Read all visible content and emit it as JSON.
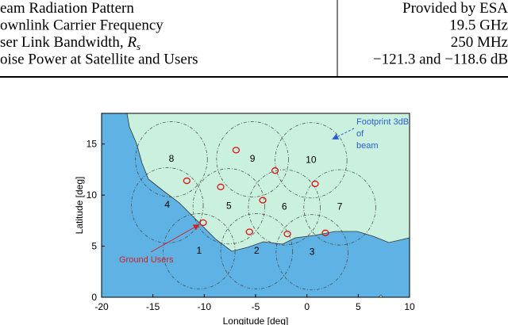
{
  "table": {
    "rows": [
      {
        "label": "eam Radiation Pattern",
        "value": "Provided by ESA"
      },
      {
        "label": "ownlink Carrier Frequency",
        "value": "19.5 GHz"
      },
      {
        "label": "ser Link Bandwidth, ",
        "symbol": "R",
        "subscript": "s",
        "value": "250 MHz"
      },
      {
        "label": "oise Power at Satellite and Users",
        "value": "−121.3 and −118.6 dB"
      }
    ]
  },
  "figure": {
    "xlabel": "Longitude [deg]",
    "ylabel": "Latitude [deg]",
    "xlim": [
      -20,
      10
    ],
    "ylim": [
      0,
      18
    ],
    "xticks": [
      -20,
      -15,
      -10,
      -5,
      0,
      5,
      10
    ],
    "yticks": [
      0,
      5,
      10,
      15
    ],
    "beams": [
      {
        "label": "1",
        "x": -10.5,
        "y": 4.5
      },
      {
        "label": "2",
        "x": -4.9,
        "y": 4.5
      },
      {
        "label": "3",
        "x": 0.5,
        "y": 4.4
      },
      {
        "label": "4",
        "x": -13.6,
        "y": 9.0
      },
      {
        "label": "5",
        "x": -7.6,
        "y": 8.9
      },
      {
        "label": "6",
        "x": -2.2,
        "y": 8.8
      },
      {
        "label": "7",
        "x": 3.2,
        "y": 8.8
      },
      {
        "label": "8",
        "x": -13.2,
        "y": 13.5
      },
      {
        "label": "9",
        "x": -5.3,
        "y": 13.5
      },
      {
        "label": "10",
        "x": 0.4,
        "y": 13.4
      }
    ],
    "users": [
      {
        "x": -11.7,
        "y": 11.4
      },
      {
        "x": -6.9,
        "y": 14.4
      },
      {
        "x": -8.4,
        "y": 10.8
      },
      {
        "x": -3.1,
        "y": 12.4
      },
      {
        "x": 0.8,
        "y": 11.1
      },
      {
        "x": -4.3,
        "y": 9.5
      },
      {
        "x": -10.1,
        "y": 7.3
      },
      {
        "x": -5.6,
        "y": 6.4
      },
      {
        "x": -1.9,
        "y": 6.2
      },
      {
        "x": 1.8,
        "y": 6.3
      }
    ],
    "annotations": {
      "footprint": [
        "Footprint 3dB",
        "of",
        "beam"
      ],
      "users": "Ground Users"
    }
  }
}
